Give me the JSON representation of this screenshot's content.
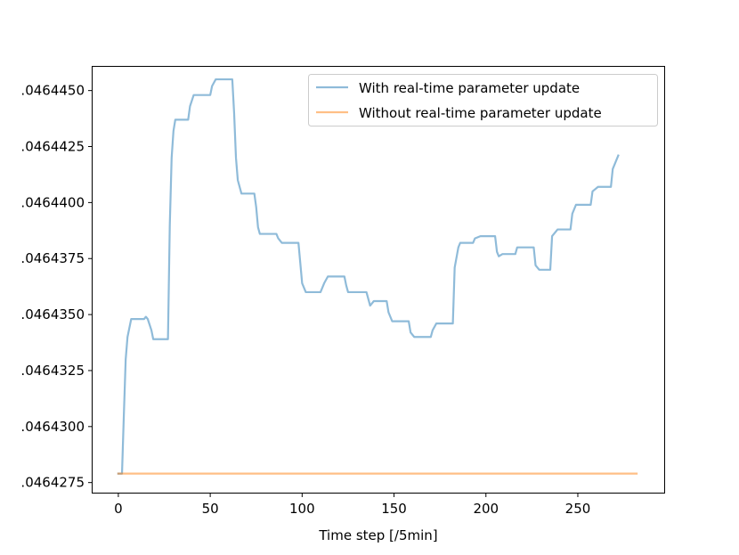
{
  "chart_data": {
    "type": "line",
    "title": "",
    "xlabel": "Time step [/5min]",
    "ylabel": "",
    "xlim": [
      -14,
      297
    ],
    "ylim": [
      0.04642705,
      0.04644606
    ],
    "x_ticks": [
      0,
      50,
      100,
      150,
      200,
      250
    ],
    "x_tick_labels": [
      "0",
      "50",
      "100",
      "150",
      "200",
      "250"
    ],
    "y_ticks": [
      0.0464275,
      0.04643,
      0.0464325,
      0.046435,
      0.0464375,
      0.04644,
      0.0464425,
      0.046445
    ],
    "y_tick_labels": [
      ".0464275",
      ".0464300",
      ".0464325",
      ".0464350",
      ".0464375",
      ".0464400",
      ".0464425",
      ".0464450"
    ],
    "grid": false,
    "legend_position": "upper-right",
    "series": [
      {
        "name": "With real-time parameter update",
        "color": "#1f77b4",
        "opacity": 0.5,
        "points": [
          [
            0,
            0.0464279
          ],
          [
            2,
            0.0464279
          ],
          [
            3,
            0.0464305
          ],
          [
            4,
            0.046433
          ],
          [
            5,
            0.046434
          ],
          [
            7,
            0.0464348
          ],
          [
            14,
            0.0464348
          ],
          [
            15,
            0.0464349
          ],
          [
            16,
            0.0464348
          ],
          [
            18,
            0.0464343
          ],
          [
            19,
            0.0464339
          ],
          [
            27,
            0.0464339
          ],
          [
            28,
            0.046439
          ],
          [
            29,
            0.046442
          ],
          [
            30,
            0.0464432
          ],
          [
            31,
            0.0464437
          ],
          [
            38,
            0.0464437
          ],
          [
            39,
            0.0464443
          ],
          [
            41,
            0.0464448
          ],
          [
            50,
            0.0464448
          ],
          [
            51,
            0.0464452
          ],
          [
            53,
            0.0464455
          ],
          [
            62,
            0.0464455
          ],
          [
            63,
            0.046444
          ],
          [
            64,
            0.046442
          ],
          [
            65,
            0.046441
          ],
          [
            67,
            0.0464404
          ],
          [
            74,
            0.0464404
          ],
          [
            75,
            0.0464398
          ],
          [
            76,
            0.0464389
          ],
          [
            77,
            0.0464386
          ],
          [
            86,
            0.0464386
          ],
          [
            87,
            0.0464384
          ],
          [
            89,
            0.0464382
          ],
          [
            98,
            0.0464382
          ],
          [
            99,
            0.0464373
          ],
          [
            100,
            0.0464364
          ],
          [
            102,
            0.046436
          ],
          [
            110,
            0.046436
          ],
          [
            112,
            0.0464364
          ],
          [
            114,
            0.0464367
          ],
          [
            123,
            0.0464367
          ],
          [
            124,
            0.0464363
          ],
          [
            125,
            0.046436
          ],
          [
            135,
            0.046436
          ],
          [
            137,
            0.0464354
          ],
          [
            139,
            0.0464356
          ],
          [
            146,
            0.0464356
          ],
          [
            147,
            0.0464351
          ],
          [
            149,
            0.0464347
          ],
          [
            158,
            0.0464347
          ],
          [
            159,
            0.0464342
          ],
          [
            161,
            0.046434
          ],
          [
            170,
            0.046434
          ],
          [
            171,
            0.0464343
          ],
          [
            173,
            0.0464346
          ],
          [
            174,
            0.0464346
          ],
          [
            175,
            0.0464346
          ],
          [
            182,
            0.0464346
          ],
          [
            183,
            0.0464371
          ],
          [
            185,
            0.046438
          ],
          [
            186,
            0.0464382
          ],
          [
            193,
            0.0464382
          ],
          [
            194,
            0.0464384
          ],
          [
            197,
            0.0464385
          ],
          [
            205,
            0.0464385
          ],
          [
            206,
            0.0464378
          ],
          [
            207,
            0.0464376
          ],
          [
            209,
            0.0464377
          ],
          [
            215,
            0.0464377
          ],
          [
            216,
            0.0464377
          ],
          [
            217,
            0.046438
          ],
          [
            221,
            0.046438
          ],
          [
            226,
            0.046438
          ],
          [
            227,
            0.0464372
          ],
          [
            229,
            0.046437
          ],
          [
            235,
            0.046437
          ],
          [
            236,
            0.0464385
          ],
          [
            239,
            0.0464388
          ],
          [
            246,
            0.0464388
          ],
          [
            247,
            0.0464395
          ],
          [
            249,
            0.0464399
          ],
          [
            257,
            0.0464399
          ],
          [
            258,
            0.0464405
          ],
          [
            261,
            0.0464407
          ],
          [
            268,
            0.0464407
          ],
          [
            269,
            0.0464415
          ],
          [
            272,
            0.0464421
          ]
        ]
      },
      {
        "name": "Without real-time parameter update",
        "color": "#ff7f0e",
        "opacity": 0.5,
        "points": [
          [
            0,
            0.0464279
          ],
          [
            282,
            0.0464279
          ]
        ]
      }
    ]
  }
}
